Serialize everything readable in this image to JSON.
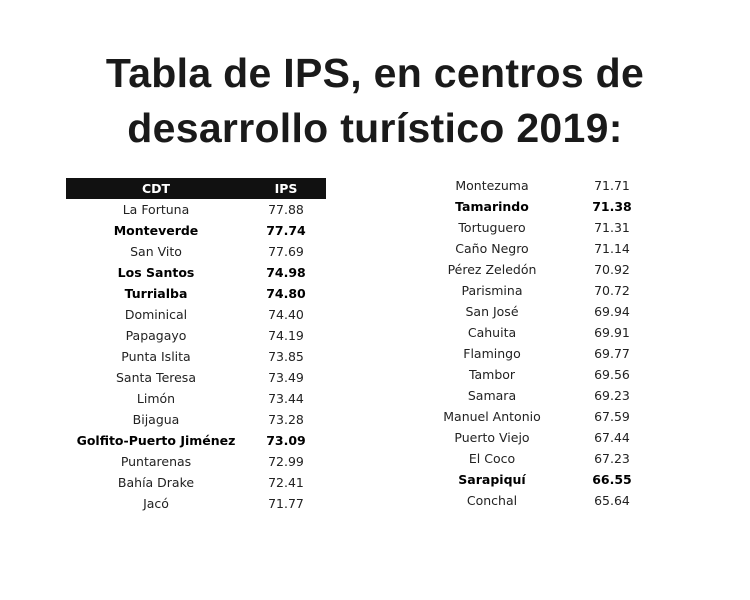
{
  "title": {
    "line1": "Tabla de IPS, en centros de",
    "line2": "desarrollo turístico 2019:"
  },
  "table": {
    "headers": [
      "CDT",
      "IPS"
    ],
    "left_rows": [
      {
        "cdt": "La Fortuna",
        "ips": "77.88",
        "bold": false
      },
      {
        "cdt": "Monteverde",
        "ips": "77.74",
        "bold": true
      },
      {
        "cdt": "San Vito",
        "ips": "77.69",
        "bold": false
      },
      {
        "cdt": "Los Santos",
        "ips": "74.98",
        "bold": true
      },
      {
        "cdt": "Turrialba",
        "ips": "74.80",
        "bold": true
      },
      {
        "cdt": "Dominical",
        "ips": "74.40",
        "bold": false
      },
      {
        "cdt": "Papagayo",
        "ips": "74.19",
        "bold": false
      },
      {
        "cdt": "Punta Islita",
        "ips": "73.85",
        "bold": false
      },
      {
        "cdt": "Santa Teresa",
        "ips": "73.49",
        "bold": false
      },
      {
        "cdt": "Limón",
        "ips": "73.44",
        "bold": false
      },
      {
        "cdt": "Bijagua",
        "ips": "73.28",
        "bold": false
      },
      {
        "cdt": "Golfito-Puerto Jiménez",
        "ips": "73.09",
        "bold": true
      },
      {
        "cdt": "Puntarenas",
        "ips": "72.99",
        "bold": false
      },
      {
        "cdt": "Bahía Drake",
        "ips": "72.41",
        "bold": false
      },
      {
        "cdt": "Jacó",
        "ips": "71.77",
        "bold": false
      }
    ],
    "right_rows": [
      {
        "cdt": "Montezuma",
        "ips": "71.71",
        "bold": false
      },
      {
        "cdt": "Tamarindo",
        "ips": "71.38",
        "bold": true
      },
      {
        "cdt": "Tortuguero",
        "ips": "71.31",
        "bold": false
      },
      {
        "cdt": "Caño Negro",
        "ips": "71.14",
        "bold": false
      },
      {
        "cdt": "Pérez Zeledón",
        "ips": "70.92",
        "bold": false
      },
      {
        "cdt": "Parismina",
        "ips": "70.72",
        "bold": false
      },
      {
        "cdt": "San José",
        "ips": "69.94",
        "bold": false
      },
      {
        "cdt": "Cahuita",
        "ips": "69.91",
        "bold": false
      },
      {
        "cdt": "Flamingo",
        "ips": "69.77",
        "bold": false
      },
      {
        "cdt": "Tambor",
        "ips": "69.56",
        "bold": false
      },
      {
        "cdt": "Samara",
        "ips": "69.23",
        "bold": false
      },
      {
        "cdt": "Manuel Antonio",
        "ips": "67.59",
        "bold": false
      },
      {
        "cdt": "Puerto Viejo",
        "ips": "67.44",
        "bold": false
      },
      {
        "cdt": "El Coco",
        "ips": "67.23",
        "bold": false
      },
      {
        "cdt": "Sarapiquí",
        "ips": "66.55",
        "bold": true
      },
      {
        "cdt": "Conchal",
        "ips": "65.64",
        "bold": false
      }
    ]
  }
}
